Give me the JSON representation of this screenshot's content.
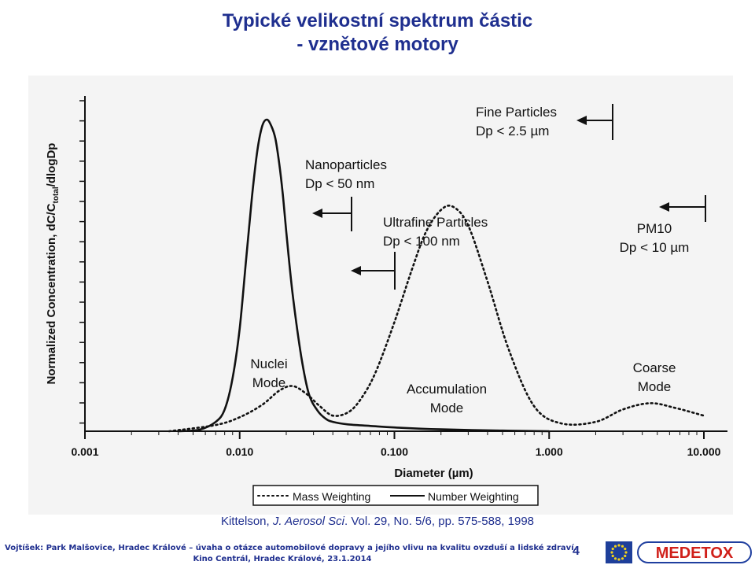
{
  "slide": {
    "title_line1": "Typické velikostní spektrum částic",
    "title_line2": "- vznětové motory"
  },
  "citation": {
    "author": "Kittelson, ",
    "journal": "J. Aerosol Sci",
    "rest": ". Vol. 29, No. 5/6, pp. 575-588, 1998"
  },
  "footer": {
    "line1": "Vojtíšek: Park Malšovice, Hradec Králové – úvaha o otázce automobilové dopravy a jejího vlivu na kvalitu ovzduší a lidské zdraví.",
    "line2": "Kino Centrál, Hradec Králové, 23.1.2014",
    "page_number": "4",
    "logo_text": "MEDETOX"
  },
  "colors": {
    "title": "#1f2f8f",
    "figure_ink": "#111111",
    "logo_red": "#d0201a",
    "logo_blue": "#1f3f9f",
    "flag_blue": "#1e3f9a",
    "flag_star": "#f2d21b"
  },
  "chart_data": {
    "type": "line",
    "xscale": "log",
    "xlim": [
      0.001,
      10.0
    ],
    "xticks": [
      "0.001",
      "0.010",
      "0.100",
      "1.000",
      "10.000"
    ],
    "xlabel": "Diameter (µm)",
    "ylabel": "Normalized Concentration, dC/C",
    "ylabel_sub": "total",
    "ylabel_tail": "/dlogDp",
    "grid": false,
    "legend_position": "bottom",
    "series": [
      {
        "name": "Mass Weighting",
        "style": "dotted",
        "x": [
          0.0035,
          0.007,
          0.01,
          0.014,
          0.018,
          0.022,
          0.027,
          0.033,
          0.04,
          0.05,
          0.06,
          0.075,
          0.1,
          0.13,
          0.16,
          0.2,
          0.24,
          0.3,
          0.4,
          0.55,
          0.8,
          1.2,
          2.0,
          3.0,
          4.5,
          6.5,
          10.0
        ],
        "y": [
          0.0,
          0.02,
          0.045,
          0.085,
          0.13,
          0.145,
          0.12,
          0.08,
          0.05,
          0.06,
          0.1,
          0.185,
          0.35,
          0.52,
          0.64,
          0.71,
          0.72,
          0.66,
          0.48,
          0.26,
          0.08,
          0.025,
          0.03,
          0.07,
          0.09,
          0.075,
          0.05
        ]
      },
      {
        "name": "Number Weighting",
        "style": "solid",
        "x": [
          0.004,
          0.0055,
          0.007,
          0.008,
          0.009,
          0.01,
          0.011,
          0.012,
          0.013,
          0.014,
          0.015,
          0.016,
          0.017,
          0.018,
          0.019,
          0.02,
          0.022,
          0.025,
          0.028,
          0.032,
          0.036,
          0.04,
          0.05,
          0.07,
          0.1,
          0.2,
          0.5,
          1.0
        ],
        "y": [
          0.0,
          0.005,
          0.03,
          0.07,
          0.17,
          0.33,
          0.55,
          0.75,
          0.9,
          0.98,
          1.0,
          0.98,
          0.94,
          0.86,
          0.76,
          0.64,
          0.44,
          0.24,
          0.12,
          0.065,
          0.04,
          0.03,
          0.022,
          0.017,
          0.012,
          0.006,
          0.002,
          0.0
        ]
      }
    ],
    "annotations": [
      {
        "line1": "Nuclei",
        "line2": "Mode"
      },
      {
        "line1": "Accumulation",
        "line2": "Mode"
      },
      {
        "line1": "Coarse",
        "line2": "Mode"
      },
      {
        "line1": "Nanoparticles",
        "line2": "Dp < 50 nm"
      },
      {
        "line1": "Ultrafine Particles",
        "line2": "Dp < 100 nm"
      },
      {
        "line1": "Fine Particles",
        "line2": "Dp < 2.5 µm"
      },
      {
        "line1": "PM10",
        "line2": "Dp < 10 µm"
      }
    ]
  }
}
